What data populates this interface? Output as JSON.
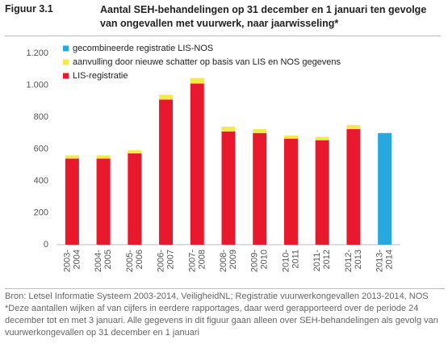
{
  "chart_data": {
    "type": "bar",
    "stacked": true,
    "figure_label": "Figuur 3.1",
    "title": "Aantal SEH-behandelingen op 31 december en 1 januari ten gevolge van ongevallen met vuurwerk, naar jaarwisseling*",
    "categories": [
      [
        "2003-",
        "2004"
      ],
      [
        "2004-",
        "2005"
      ],
      [
        "2005-",
        "2006"
      ],
      [
        "2006-",
        "2007"
      ],
      [
        "2007-",
        "2008"
      ],
      [
        "2008-",
        "2009"
      ],
      [
        "2009-",
        "2010"
      ],
      [
        "2010-",
        "2011"
      ],
      [
        "2011-",
        "2012"
      ],
      [
        "2012-",
        "2013"
      ],
      [
        "2013-",
        "2014"
      ]
    ],
    "series": [
      {
        "name": "gecombineerde registratie LIS-NOS",
        "color": "#29a8e0",
        "values": [
          null,
          null,
          null,
          null,
          null,
          null,
          null,
          null,
          null,
          null,
          700
        ]
      },
      {
        "name": "aanvulling door nieuwe schatter op basis van LIS en NOS gegevens",
        "color": "#f5e84b",
        "values": [
          20,
          20,
          20,
          30,
          35,
          30,
          25,
          20,
          20,
          25,
          null
        ]
      },
      {
        "name": "LIS-registratie",
        "color": "#e8192c",
        "values": [
          540,
          540,
          572,
          910,
          1010,
          710,
          700,
          665,
          655,
          725,
          null
        ]
      }
    ],
    "ylim": [
      0,
      1200
    ],
    "yticks": [
      0,
      200,
      400,
      600,
      800,
      {
        "value": 1000,
        "label": "1.000"
      },
      {
        "value": 1200,
        "label": "1.200"
      }
    ],
    "grid": false,
    "legend": "top-left",
    "source": "Bron: Letsel Informatie Systeem 2003-2014, VeiligheidNL; Registratie vuurwerkongevallen 2013-2014, NOS",
    "note": "*Deze aantallen wijken af van cijfers in eerdere rapportages, daar werd gerapporteerd over de periode 24 december tot en met 3 januari. Alle gegevens in dit figuur gaan alleen over SEH-behandelingen als gevolg van vuurwerkongevallen op 31 december en 1 januari"
  }
}
